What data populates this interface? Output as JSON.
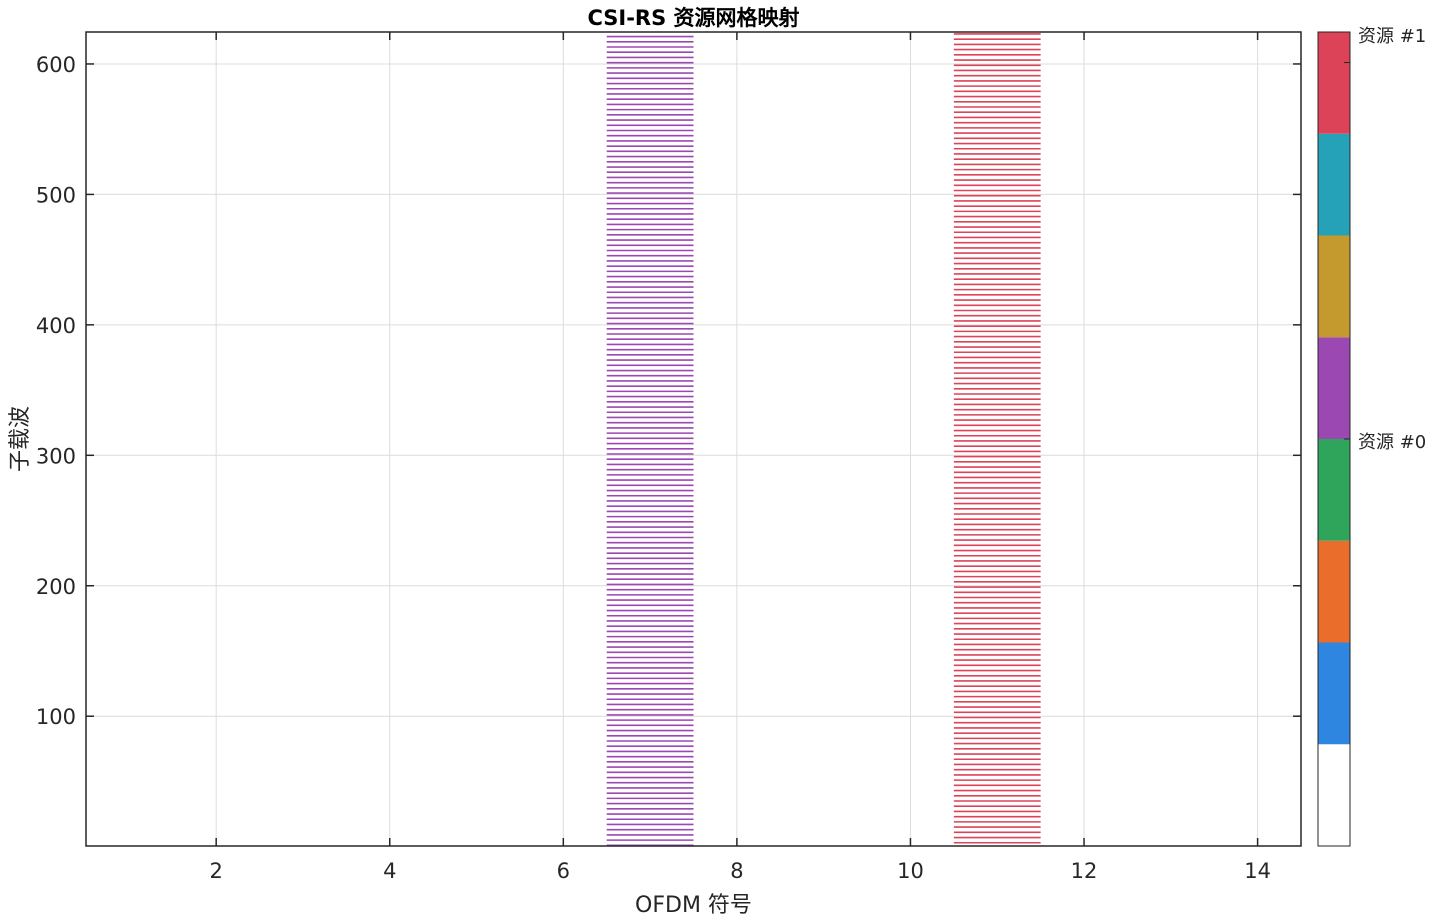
{
  "chart_data": {
    "type": "heatmap",
    "title": "CSI-RS 资源网格映射",
    "xlabel": "OFDM 符号",
    "ylabel": "子载波",
    "xlim": [
      0.5,
      14.5
    ],
    "ylim": [
      0.5,
      624.5
    ],
    "xticks": [
      2,
      4,
      6,
      8,
      10,
      12,
      14
    ],
    "yticks": [
      100,
      200,
      300,
      400,
      500,
      600
    ],
    "grid": true,
    "colorbar": {
      "colors": [
        "#ffffff",
        "#2e86e0",
        "#ea6d2b",
        "#2fa55c",
        "#9b48b2",
        "#c49a2e",
        "#25a1b8",
        "#dc4359"
      ],
      "labels": [
        {
          "text": "资源 #0",
          "level": 4
        },
        {
          "text": "资源 #1",
          "level": 7.7
        }
      ]
    },
    "series": [
      {
        "name": "资源 #0",
        "symbol": 7,
        "color": "#9b48b2",
        "subcarrier_step": 4,
        "subcarrier_start": 1
      },
      {
        "name": "资源 #1",
        "symbol": 11,
        "color": "#dc4359",
        "subcarrier_step": 4,
        "subcarrier_start": 3
      }
    ]
  }
}
